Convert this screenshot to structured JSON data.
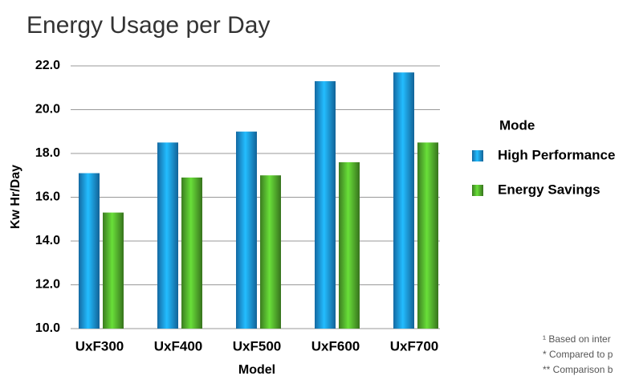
{
  "chart_data": {
    "type": "bar",
    "title": "Energy Usage per Day",
    "categories": [
      "UxF300",
      "UxF400",
      "UxF500",
      "UxF600",
      "UxF700"
    ],
    "series": [
      {
        "name": "High Performance",
        "color": "#1a8cd8",
        "values": [
          17.1,
          18.5,
          19.0,
          21.3,
          21.7
        ]
      },
      {
        "name": "Energy Savings",
        "color": "#4ea52a",
        "values": [
          15.3,
          16.9,
          17.0,
          17.6,
          18.5
        ]
      }
    ],
    "ylim": [
      10,
      22
    ],
    "yticks": [
      {
        "value": 10,
        "label": "10.0"
      },
      {
        "value": 12,
        "label": "12.0"
      },
      {
        "value": 14,
        "label": "14.0"
      },
      {
        "value": 16,
        "label": "16.0"
      },
      {
        "value": 18,
        "label": "18.0"
      },
      {
        "value": 20,
        "label": "20.0"
      },
      {
        "value": 22,
        "label": "22.0"
      }
    ],
    "x_label": "Model",
    "y_label": "Kw Hr/Day",
    "legend_title": "Mode",
    "legend": "right",
    "grid": true,
    "annotations": [
      "¹ Based on inter",
      "* Compared to p",
      "** Comparison b"
    ]
  }
}
